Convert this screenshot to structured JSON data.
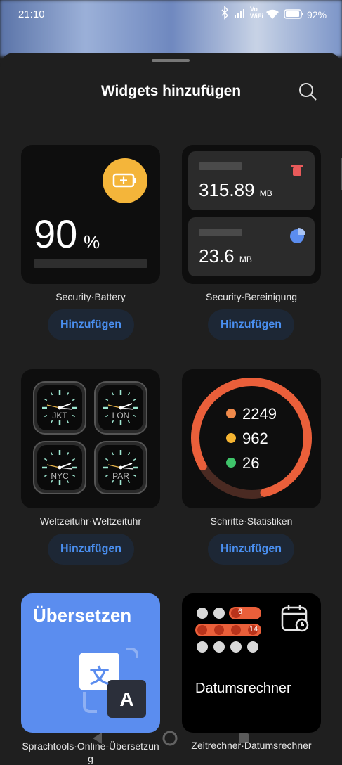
{
  "status_bar": {
    "time": "21:10",
    "network_top": "Vo",
    "network_bottom": "WiFi",
    "battery": "92%"
  },
  "header": {
    "title": "Widgets hinzufügen"
  },
  "widgets": [
    {
      "label": "Security·Battery",
      "button": "Hinzufügen",
      "value": "90",
      "unit": "%"
    },
    {
      "label": "Security·Bereinigung",
      "button": "Hinzufügen",
      "items": [
        {
          "value": "315.89",
          "unit": "MB"
        },
        {
          "value": "23.6",
          "unit": "MB"
        }
      ]
    },
    {
      "label": "Weltzeituhr·Weltzeituhr",
      "button": "Hinzufügen",
      "clocks": [
        "JKT",
        "LON",
        "NYC",
        "PAR"
      ]
    },
    {
      "label": "Schritte·Statistiken",
      "button": "Hinzufügen",
      "stats": [
        "2249",
        "962",
        "26"
      ]
    },
    {
      "label": "Sprachtools·Online-Übersetzung",
      "title": "Übersetzen",
      "icon_source": "文",
      "icon_target": "A"
    },
    {
      "label": "Zeitrechner·Datumsrechner",
      "title": "Datumsrechner",
      "badges": [
        "6",
        "14"
      ]
    }
  ]
}
